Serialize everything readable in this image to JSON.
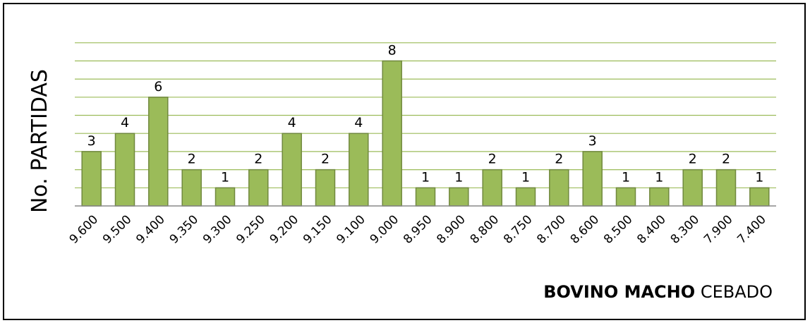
{
  "chart_data": {
    "type": "bar",
    "categories": [
      "9.600",
      "9.500",
      "9.400",
      "9.350",
      "9.300",
      "9.250",
      "9.200",
      "9.150",
      "9.100",
      "9.000",
      "8.950",
      "8.900",
      "8.800",
      "8.750",
      "8.700",
      "8.600",
      "8.500",
      "8.400",
      "8.300",
      "7.900",
      "7.400"
    ],
    "values": [
      3,
      4,
      6,
      2,
      1,
      2,
      4,
      2,
      4,
      8,
      1,
      1,
      2,
      1,
      2,
      3,
      1,
      1,
      2,
      2,
      1
    ],
    "title": "",
    "ylabel": "No. PARTIDAS",
    "xlabel": {
      "bold_part": "BOVINO MACHO",
      "regular_part": "CEBADO"
    },
    "ylim": [
      0,
      9
    ],
    "grid": true,
    "data_labels": true,
    "bar_color": "#9bbb59",
    "bar_edge_color": "#71893f",
    "grid_color": "#9bbb59"
  }
}
